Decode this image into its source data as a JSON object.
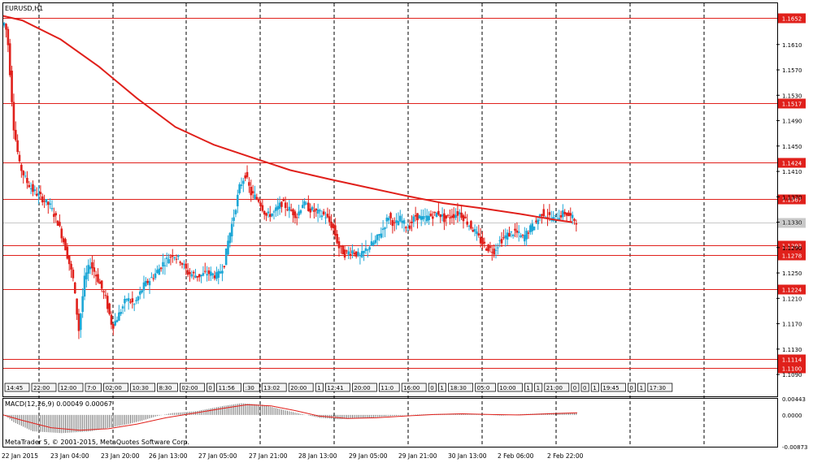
{
  "window": {
    "symbol_title": "EURUSD,H1",
    "copyright": "MetaTrader 5, © 2001-2015, MetaQuotes Software Corp."
  },
  "colors": {
    "bull": "#1ea7d6",
    "bear": "#e0201b",
    "level_line": "#e0201b",
    "ma_line": "#e0201b",
    "grid": "#000000",
    "current_price": "#c8c8c8",
    "event_box": "#111111"
  },
  "price_axis": {
    "ticks": [
      "1.1610",
      "1.1570",
      "1.1530",
      "1.1490",
      "1.1450",
      "1.1410",
      "1.1370",
      "1.1330",
      "1.1290",
      "1.1250",
      "1.1210",
      "1.1170",
      "1.1130",
      "1.1090"
    ],
    "level_labels": [
      "1.1652",
      "1.1517",
      "1.1424",
      "1.1367",
      "1.1293",
      "1.1278",
      "1.1224",
      "1.1114",
      "1.1100"
    ],
    "current_label": "1.1329"
  },
  "time_axis": {
    "labels": [
      "22 Jan 2015",
      "23 Jan 04:00",
      "23 Jan 20:00",
      "26 Jan 13:00",
      "27 Jan 05:00",
      "27 Jan 21:00",
      "28 Jan 13:00",
      "29 Jan 05:00",
      "29 Jan 21:00",
      "30 Jan 13:00",
      "2 Feb 06:00",
      "2 Feb 22:00"
    ]
  },
  "event_labels": [
    "14:45",
    "22:00",
    "12:00",
    "7:0",
    "02:00",
    "10:30",
    "8:30",
    "02:00",
    "0",
    "11:56",
    ":30",
    "13:02",
    "20:00",
    "1",
    "12:41",
    "20:00",
    "11:0",
    "16:00",
    "0",
    "1",
    "18:30",
    "05:0",
    "10:00",
    "1",
    "1",
    "21:00",
    "0",
    "0",
    "1",
    "19:45",
    "0",
    "1",
    "17:30"
  ],
  "macd": {
    "label": "MACD(12,26,9) 0.00049 0.00067",
    "ticks": [
      "0.00443",
      "0.0000",
      "-0.00873"
    ]
  },
  "chart_data": {
    "type": "candlestick",
    "title": "EURUSD,H1",
    "ylim": [
      1.1085,
      1.1675
    ],
    "horizontal_levels": [
      1.1652,
      1.1517,
      1.1424,
      1.1367,
      1.1293,
      1.1278,
      1.1224,
      1.1114,
      1.11
    ],
    "current_price": 1.1329,
    "moving_average": [
      [
        0,
        1.1655
      ],
      [
        20,
        1.1648
      ],
      [
        60,
        1.1618
      ],
      [
        100,
        1.1575
      ],
      [
        140,
        1.1525
      ],
      [
        180,
        1.148
      ],
      [
        220,
        1.1452
      ],
      [
        260,
        1.1432
      ],
      [
        300,
        1.1412
      ],
      [
        340,
        1.1398
      ],
      [
        380,
        1.1385
      ],
      [
        420,
        1.1372
      ],
      [
        460,
        1.136
      ],
      [
        500,
        1.1352
      ],
      [
        540,
        1.1343
      ],
      [
        560,
        1.1338
      ],
      [
        580,
        1.1333
      ],
      [
        595,
        1.133
      ]
    ],
    "segments": [
      [
        0,
        1.164
      ],
      [
        3,
        1.1645
      ],
      [
        6,
        1.161
      ],
      [
        12,
        1.148
      ],
      [
        18,
        1.142
      ],
      [
        25,
        1.1395
      ],
      [
        32,
        1.138
      ],
      [
        40,
        1.137
      ],
      [
        50,
        1.1355
      ],
      [
        58,
        1.133
      ],
      [
        66,
        1.129
      ],
      [
        74,
        1.124
      ],
      [
        80,
        1.116
      ],
      [
        86,
        1.124
      ],
      [
        92,
        1.1265
      ],
      [
        100,
        1.124
      ],
      [
        108,
        1.121
      ],
      [
        115,
        1.1165
      ],
      [
        122,
        1.1185
      ],
      [
        130,
        1.121
      ],
      [
        138,
        1.12
      ],
      [
        148,
        1.123
      ],
      [
        158,
        1.1245
      ],
      [
        168,
        1.1265
      ],
      [
        178,
        1.128
      ],
      [
        186,
        1.127
      ],
      [
        194,
        1.125
      ],
      [
        205,
        1.1245
      ],
      [
        215,
        1.125
      ],
      [
        225,
        1.1245
      ],
      [
        232,
        1.1265
      ],
      [
        236,
        1.13
      ],
      [
        242,
        1.134
      ],
      [
        248,
        1.1385
      ],
      [
        254,
        1.1405
      ],
      [
        260,
        1.1375
      ],
      [
        268,
        1.1365
      ],
      [
        276,
        1.134
      ],
      [
        284,
        1.1345
      ],
      [
        292,
        1.136
      ],
      [
        300,
        1.135
      ],
      [
        308,
        1.134
      ],
      [
        314,
        1.136
      ],
      [
        322,
        1.135
      ],
      [
        330,
        1.1345
      ],
      [
        338,
        1.134
      ],
      [
        346,
        1.132
      ],
      [
        352,
        1.129
      ],
      [
        358,
        1.128
      ],
      [
        366,
        1.1285
      ],
      [
        374,
        1.1275
      ],
      [
        382,
        1.129
      ],
      [
        390,
        1.13
      ],
      [
        398,
        1.132
      ],
      [
        404,
        1.134
      ],
      [
        410,
        1.1325
      ],
      [
        416,
        1.1335
      ],
      [
        424,
        1.132
      ],
      [
        432,
        1.134
      ],
      [
        440,
        1.1335
      ],
      [
        448,
        1.134
      ],
      [
        456,
        1.1345
      ],
      [
        462,
        1.1335
      ],
      [
        470,
        1.134
      ],
      [
        478,
        1.1345
      ],
      [
        486,
        1.133
      ],
      [
        494,
        1.1315
      ],
      [
        500,
        1.13
      ],
      [
        506,
        1.129
      ],
      [
        514,
        1.1285
      ],
      [
        520,
        1.13
      ],
      [
        528,
        1.131
      ],
      [
        536,
        1.1315
      ],
      [
        544,
        1.1305
      ],
      [
        552,
        1.132
      ],
      [
        558,
        1.133
      ],
      [
        564,
        1.1345
      ],
      [
        570,
        1.134
      ],
      [
        576,
        1.1335
      ],
      [
        582,
        1.134
      ],
      [
        588,
        1.1345
      ],
      [
        594,
        1.1338
      ],
      [
        600,
        1.1332
      ]
    ],
    "macd_histogram_peaks": [
      [
        0,
        0.0
      ],
      [
        10,
        -0.002
      ],
      [
        30,
        -0.0045
      ],
      [
        60,
        -0.005
      ],
      [
        90,
        -0.0045
      ],
      [
        110,
        -0.0035
      ],
      [
        130,
        -0.0025
      ],
      [
        145,
        -0.0015
      ],
      [
        160,
        -0.0003
      ],
      [
        175,
        0.0005
      ],
      [
        200,
        0.001
      ],
      [
        230,
        0.0025
      ],
      [
        248,
        0.0032
      ],
      [
        270,
        0.0028
      ],
      [
        290,
        0.0015
      ],
      [
        310,
        0.0003
      ],
      [
        330,
        -0.0008
      ],
      [
        350,
        -0.0012
      ],
      [
        380,
        -0.0008
      ],
      [
        400,
        -0.0004
      ],
      [
        430,
        0.0001
      ],
      [
        460,
        0.0003
      ],
      [
        480,
        0.0004
      ],
      [
        500,
        0.0001
      ],
      [
        520,
        -0.0002
      ],
      [
        540,
        0.0002
      ],
      [
        560,
        0.0004
      ],
      [
        580,
        0.0006
      ],
      [
        600,
        0.0006
      ]
    ],
    "macd_signal": [
      [
        0,
        0.0
      ],
      [
        20,
        -0.0015
      ],
      [
        50,
        -0.0035
      ],
      [
        80,
        -0.0042
      ],
      [
        110,
        -0.0038
      ],
      [
        140,
        -0.0025
      ],
      [
        170,
        -0.0008
      ],
      [
        200,
        0.0005
      ],
      [
        230,
        0.0018
      ],
      [
        255,
        0.0028
      ],
      [
        280,
        0.0025
      ],
      [
        305,
        0.0012
      ],
      [
        330,
        -0.0003
      ],
      [
        360,
        -0.001
      ],
      [
        390,
        -0.0008
      ],
      [
        420,
        -0.0003
      ],
      [
        450,
        0.0001
      ],
      [
        480,
        0.0003
      ],
      [
        510,
        0.0001
      ],
      [
        540,
        0.0
      ],
      [
        570,
        0.0003
      ],
      [
        600,
        0.0006
      ]
    ]
  }
}
